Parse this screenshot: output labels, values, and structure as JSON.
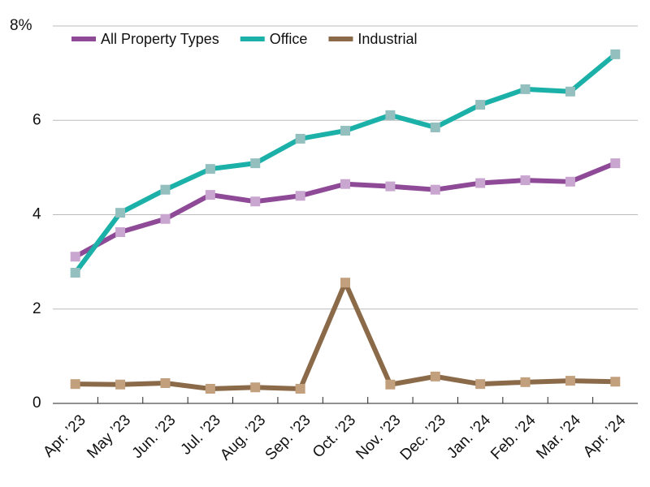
{
  "chart_data": {
    "type": "line",
    "categories": [
      "Apr. ’23",
      "May ’23",
      "Jun. ’23",
      "Jul. ’23",
      "Aug. ’23",
      "Sep. ’23",
      "Oct. ’23",
      "Nov. ’23",
      "Dec. ’23",
      "Jan. ’24",
      "Feb. ’24",
      "Mar. ’24",
      "Apr. ’24"
    ],
    "series": [
      {
        "name": "All Property Types",
        "color": "#8e4a97",
        "marker_color": "#c9a6d0",
        "values": [
          3.11,
          3.63,
          3.91,
          4.42,
          4.28,
          4.4,
          4.65,
          4.6,
          4.53,
          4.67,
          4.73,
          4.7,
          5.09
        ]
      },
      {
        "name": "Office",
        "color": "#1bb0a8",
        "marker_color": "#94bfbf",
        "values": [
          2.77,
          4.04,
          4.53,
          4.97,
          5.09,
          5.61,
          5.78,
          6.11,
          5.85,
          6.33,
          6.66,
          6.61,
          7.4
        ]
      },
      {
        "name": "Industrial",
        "color": "#8a6a48",
        "marker_color": "#c2a07e",
        "values": [
          0.41,
          0.4,
          0.43,
          0.31,
          0.34,
          0.31,
          2.56,
          0.4,
          0.57,
          0.41,
          0.45,
          0.48,
          0.46
        ]
      }
    ],
    "ylim": [
      0,
      8
    ],
    "yticks": [
      0,
      2,
      4,
      6,
      {
        "value": 8,
        "label": "8%"
      }
    ],
    "grid": true,
    "legend": "top-left"
  }
}
